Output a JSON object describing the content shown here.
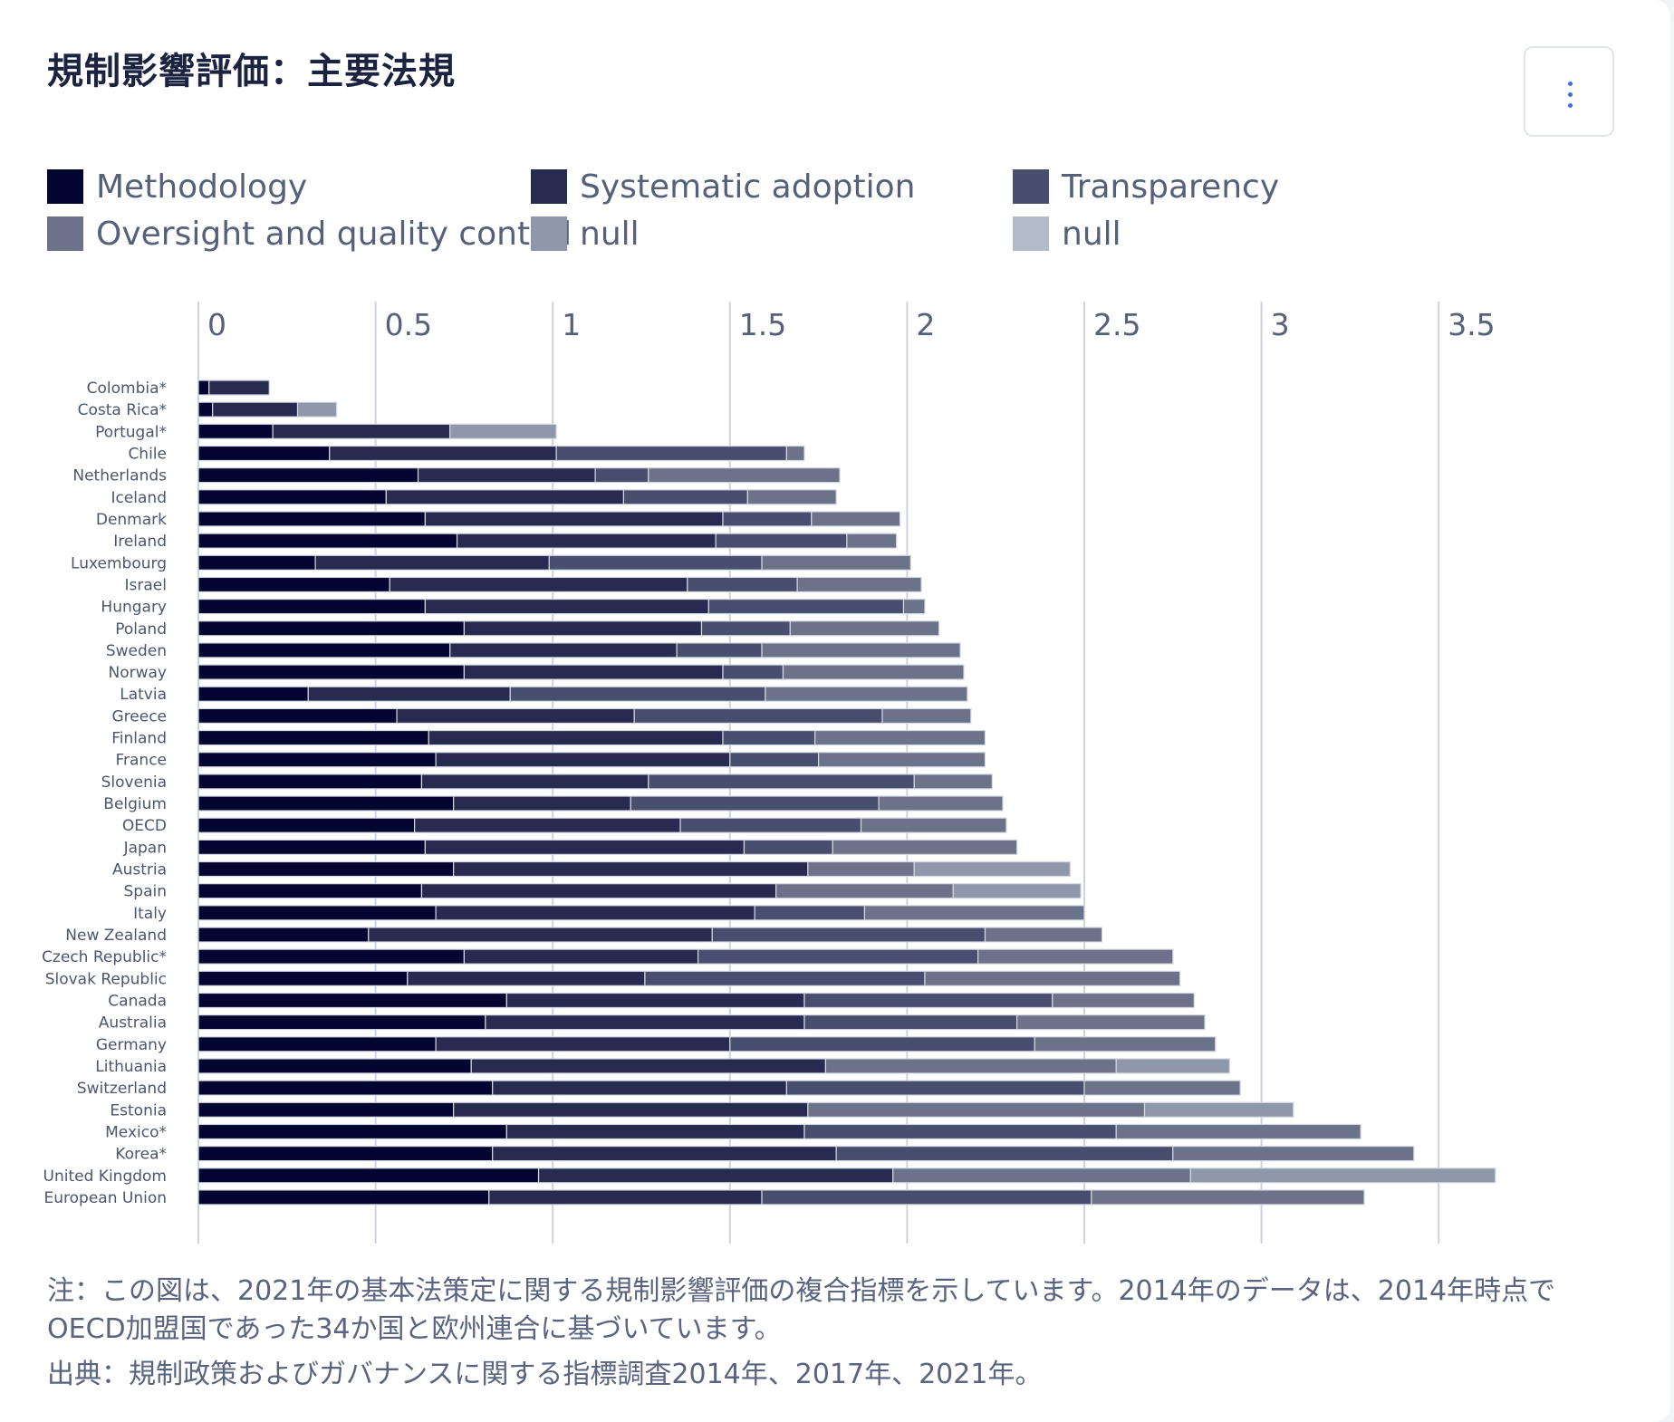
{
  "header": {
    "title": "規制影響評価：主要法規",
    "menu_icon": "vertical-ellipsis-icon",
    "menu_label": "⋮"
  },
  "legend": [
    {
      "label": "Methodology",
      "color": "#020631"
    },
    {
      "label": "Systematic adoption",
      "color": "#262b4f"
    },
    {
      "label": "Transparency",
      "color": "#484e6d"
    },
    {
      "label": "Oversight and quality control",
      "color": "#6b7289"
    },
    {
      "label": "null",
      "color": "#8e98aa"
    },
    {
      "label": "null",
      "color": "#b2bbca"
    }
  ],
  "chart_data": {
    "type": "bar",
    "orientation": "horizontal",
    "stacked": true,
    "title": "規制影響評価：主要法規",
    "xlabel": "",
    "ylabel": "",
    "xlim": [
      0,
      3.5
    ],
    "x_ticks": [
      "0",
      "0.5",
      "1",
      "1.5",
      "2",
      "2.5",
      "3",
      "3.5"
    ],
    "x_tick_values": [
      0,
      0.5,
      1,
      1.5,
      2,
      2.5,
      3,
      3.5
    ],
    "x_axis_position": "top",
    "grid": true,
    "legend_position": "top-left",
    "categories": [
      "Colombia*",
      "Costa Rica*",
      "Portugal*",
      "Chile",
      "Netherlands",
      "Iceland",
      "Denmark",
      "Ireland",
      "Luxembourg",
      "Israel",
      "Hungary",
      "Poland",
      "Sweden",
      "Norway",
      "Latvia",
      "Greece",
      "Finland",
      "France",
      "Slovenia",
      "Belgium",
      "OECD",
      "Japan",
      "Austria",
      "Spain",
      "Italy",
      "New Zealand",
      "Czech Republic*",
      "Slovak Republic",
      "Canada",
      "Australia",
      "Germany",
      "Lithuania",
      "Switzerland",
      "Estonia",
      "Mexico*",
      "Korea*",
      "United Kingdom",
      "European Union"
    ],
    "series": [
      {
        "name": "Methodology",
        "color": "#020631",
        "values": [
          0.03,
          0.04,
          0.21,
          0.37,
          0.62,
          0.53,
          0.64,
          0.73,
          0.33,
          0.54,
          0.64,
          0.75,
          0.71,
          0.75,
          0.31,
          0.56,
          0.65,
          0.67,
          0.63,
          0.72,
          0.61,
          0.64,
          0.72,
          0.63,
          0.67,
          0.48,
          0.75,
          0.59,
          0.87,
          0.81,
          0.67,
          0.77,
          0.83,
          0.72,
          0.87,
          0.83,
          0.96,
          0.82
        ]
      },
      {
        "name": "Systematic adoption",
        "color": "#262b4f",
        "values": [
          0.17,
          0.24,
          0.5,
          0.64,
          0.5,
          0.67,
          0.84,
          0.73,
          0.66,
          0.84,
          0.8,
          0.67,
          0.64,
          0.73,
          0.57,
          0.67,
          0.83,
          0.83,
          0.64,
          0.5,
          0.75,
          0.9,
          1.0,
          1.0,
          0.9,
          0.97,
          0.66,
          0.67,
          0.84,
          0.9,
          0.83,
          1.0,
          0.83,
          1.0,
          0.84,
          0.97,
          1.0,
          0.77
        ]
      },
      {
        "name": "Transparency",
        "color": "#484e6d",
        "values": [
          0,
          0,
          0,
          0.65,
          0.15,
          0.35,
          0.25,
          0.37,
          0.6,
          0.31,
          0.55,
          0.25,
          0.24,
          0.17,
          0.72,
          0.7,
          0.26,
          0.25,
          0.75,
          0.7,
          0.51,
          0.25,
          0,
          0,
          0.31,
          0.77,
          0.79,
          0.79,
          0.7,
          0.6,
          0.86,
          0,
          0.84,
          0,
          0.88,
          0.95,
          0,
          0.93
        ]
      },
      {
        "name": "Oversight and quality control",
        "color": "#6b7289",
        "values": [
          0,
          0,
          0,
          0.05,
          0.54,
          0.25,
          0.25,
          0.14,
          0.42,
          0.35,
          0.06,
          0.42,
          0.56,
          0.51,
          0.57,
          0.25,
          0.48,
          0.47,
          0.22,
          0.35,
          0.41,
          0.52,
          0.3,
          0.5,
          0.62,
          0.33,
          0.55,
          0.72,
          0.4,
          0.53,
          0.51,
          0.82,
          0.44,
          0.95,
          0.69,
          0.68,
          0.84,
          0.77
        ]
      },
      {
        "name": "null",
        "color": "#8e98aa",
        "values": [
          0,
          0.11,
          0.3,
          0,
          0,
          0,
          0,
          0,
          0,
          0,
          0,
          0,
          0,
          0,
          0,
          0,
          0,
          0,
          0,
          0,
          0,
          0,
          0.44,
          0.36,
          0,
          0,
          0,
          0,
          0,
          0,
          0,
          0.32,
          0,
          0.42,
          0,
          0,
          0.86,
          0
        ]
      },
      {
        "name": "null",
        "color": "#b2bbca",
        "values": [
          0,
          0,
          0,
          0,
          0,
          0,
          0,
          0,
          0,
          0,
          0,
          0,
          0,
          0,
          0,
          0,
          0,
          0,
          0,
          0,
          0,
          0,
          0,
          0,
          0,
          0,
          0,
          0,
          0,
          0,
          0,
          0,
          0,
          0,
          0,
          0,
          0,
          0
        ]
      }
    ]
  },
  "footer": {
    "note_line1": "注：この図は、2021年の基本法策定に関する規制影響評価の複合指標を示しています。2014年のデータは、2014年時点で",
    "note_line2": "OECD加盟国であった34か国と欧州連合に基づいています。",
    "source": "出典：規制政策およびガバナンスに関する指標調査2014年、2017年、2021年。"
  }
}
